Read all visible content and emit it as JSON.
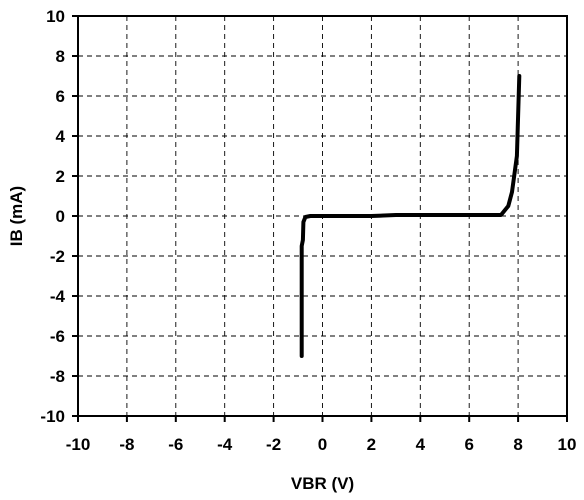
{
  "chart_data": {
    "type": "line",
    "title": "",
    "xlabel": "VBR (V)",
    "ylabel": "IB (mA)",
    "xlim": [
      -10,
      10
    ],
    "ylim": [
      -10,
      10
    ],
    "x_ticks": [
      -10,
      -8,
      -6,
      -4,
      -2,
      0,
      2,
      4,
      6,
      8,
      10
    ],
    "y_ticks": [
      -10,
      -8,
      -6,
      -4,
      -2,
      0,
      2,
      4,
      6,
      8,
      10
    ],
    "x_tick_labels": [
      "-10",
      "-8",
      "-6",
      "-4",
      "-2",
      "0",
      "2",
      "4",
      "6",
      "8",
      "10"
    ],
    "y_tick_labels": [
      "-10",
      "-8",
      "-6",
      "-4",
      "-2",
      "0",
      "2",
      "4",
      "6",
      "8",
      "10"
    ],
    "grid": true,
    "legend": "none",
    "series": [
      {
        "color": "#000000",
        "points": [
          {
            "x": -0.85,
            "y": -7.0
          },
          {
            "x": -0.85,
            "y": -1.5
          },
          {
            "x": -0.8,
            "y": -1.2
          },
          {
            "x": -0.78,
            "y": -0.3
          },
          {
            "x": -0.7,
            "y": -0.05
          },
          {
            "x": -0.5,
            "y": 0.0
          },
          {
            "x": 2.0,
            "y": 0.0
          },
          {
            "x": 3.0,
            "y": 0.05
          },
          {
            "x": 7.3,
            "y": 0.05
          },
          {
            "x": 7.6,
            "y": 0.5
          },
          {
            "x": 7.75,
            "y": 1.2
          },
          {
            "x": 7.95,
            "y": 3.0
          },
          {
            "x": 8.0,
            "y": 5.0
          },
          {
            "x": 8.05,
            "y": 7.0
          }
        ]
      }
    ]
  }
}
